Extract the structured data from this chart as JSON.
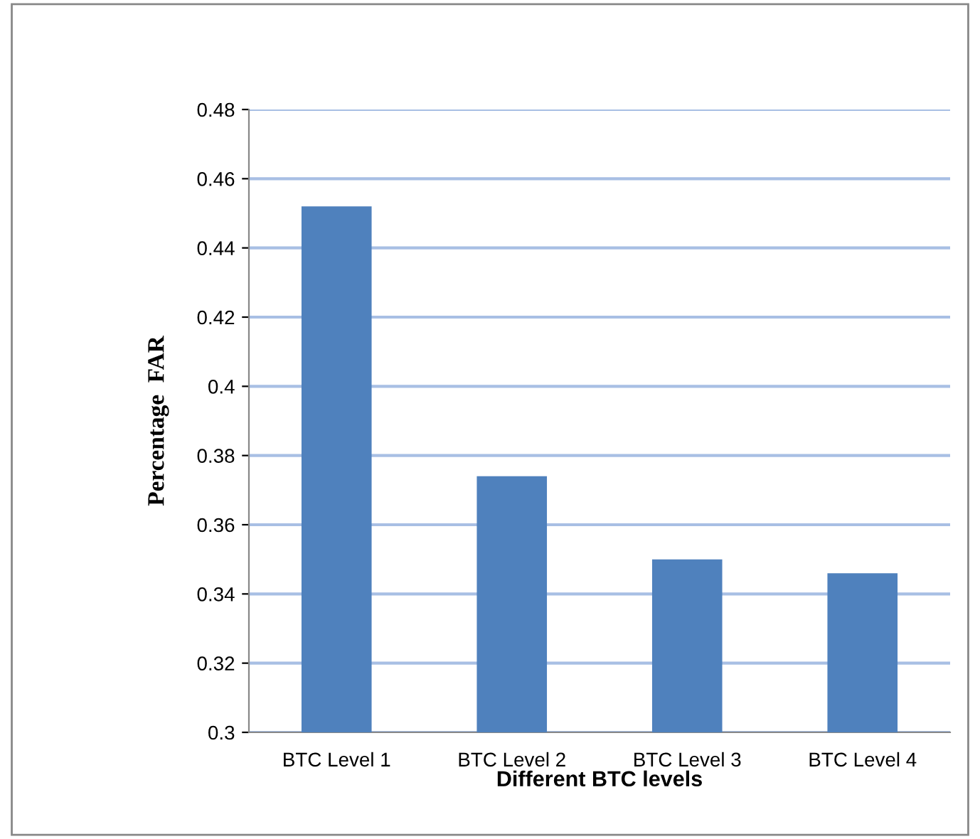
{
  "chart_data": {
    "type": "bar",
    "xlabel": "Different BTC levels",
    "ylabel": "Percentage  FAR",
    "categories": [
      "BTC Level 1",
      "BTC Level 2",
      "BTC Level 3",
      "BTC Level 4"
    ],
    "values": [
      0.452,
      0.374,
      0.35,
      0.346
    ],
    "color": "#4f81bd",
    "ylim": [
      0.3,
      0.48
    ],
    "yticks": [
      0.3,
      0.32,
      0.34,
      0.36,
      0.38,
      {
        "value": 0.4,
        "label": "0.4"
      },
      0.42,
      0.44,
      0.46,
      0.48
    ],
    "grid": "y"
  }
}
